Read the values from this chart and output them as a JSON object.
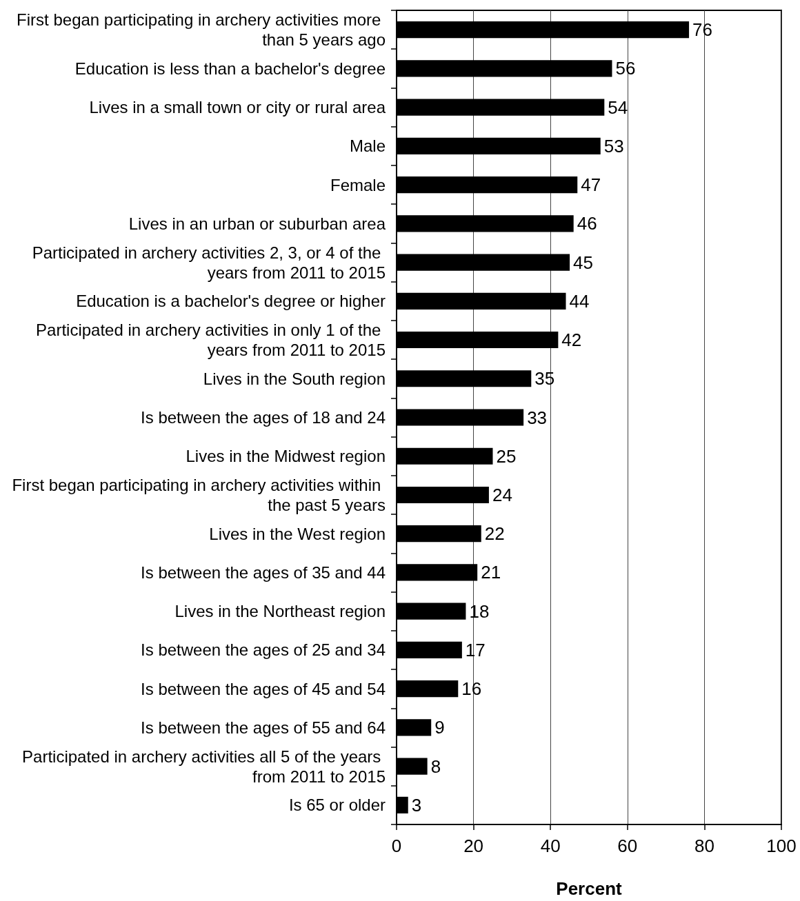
{
  "chart_data": {
    "type": "bar",
    "orientation": "horizontal",
    "xlabel": "Percent",
    "categories": [
      "First began participating in archery activities more than 5 years ago",
      "Education is less than a bachelor's degree",
      "Lives in a small town or city or rural area",
      "Male",
      "Female",
      "Lives in an urban or suburban area",
      "Participated in archery activities 2, 3, or 4 of the years from 2011 to 2015",
      "Education is a bachelor's degree or higher",
      "Participated in archery activities in only 1 of the years from 2011 to 2015",
      "Lives in the South region",
      "Is between the ages of 18 and 24",
      "Lives in the Midwest region",
      "First began participating in archery activities within the past 5 years",
      "Lives in the West region",
      "Is between the ages of 35 and 44",
      "Lives in the Northeast region",
      "Is between the ages of 25 and 34",
      "Is between the ages of 45 and 54",
      "Is between the ages of 55 and 64",
      "Participated in archery activities all 5 of the years from 2011 to 2015",
      "Is 65 or older"
    ],
    "values": [
      76,
      56,
      54,
      53,
      47,
      46,
      45,
      44,
      42,
      35,
      33,
      25,
      24,
      22,
      21,
      18,
      17,
      16,
      9,
      8,
      3
    ],
    "color": "#000000",
    "xlim": [
      0,
      100
    ],
    "xticks": [
      0,
      20,
      40,
      60,
      80,
      100
    ],
    "grid": "x",
    "data_labels": true
  }
}
